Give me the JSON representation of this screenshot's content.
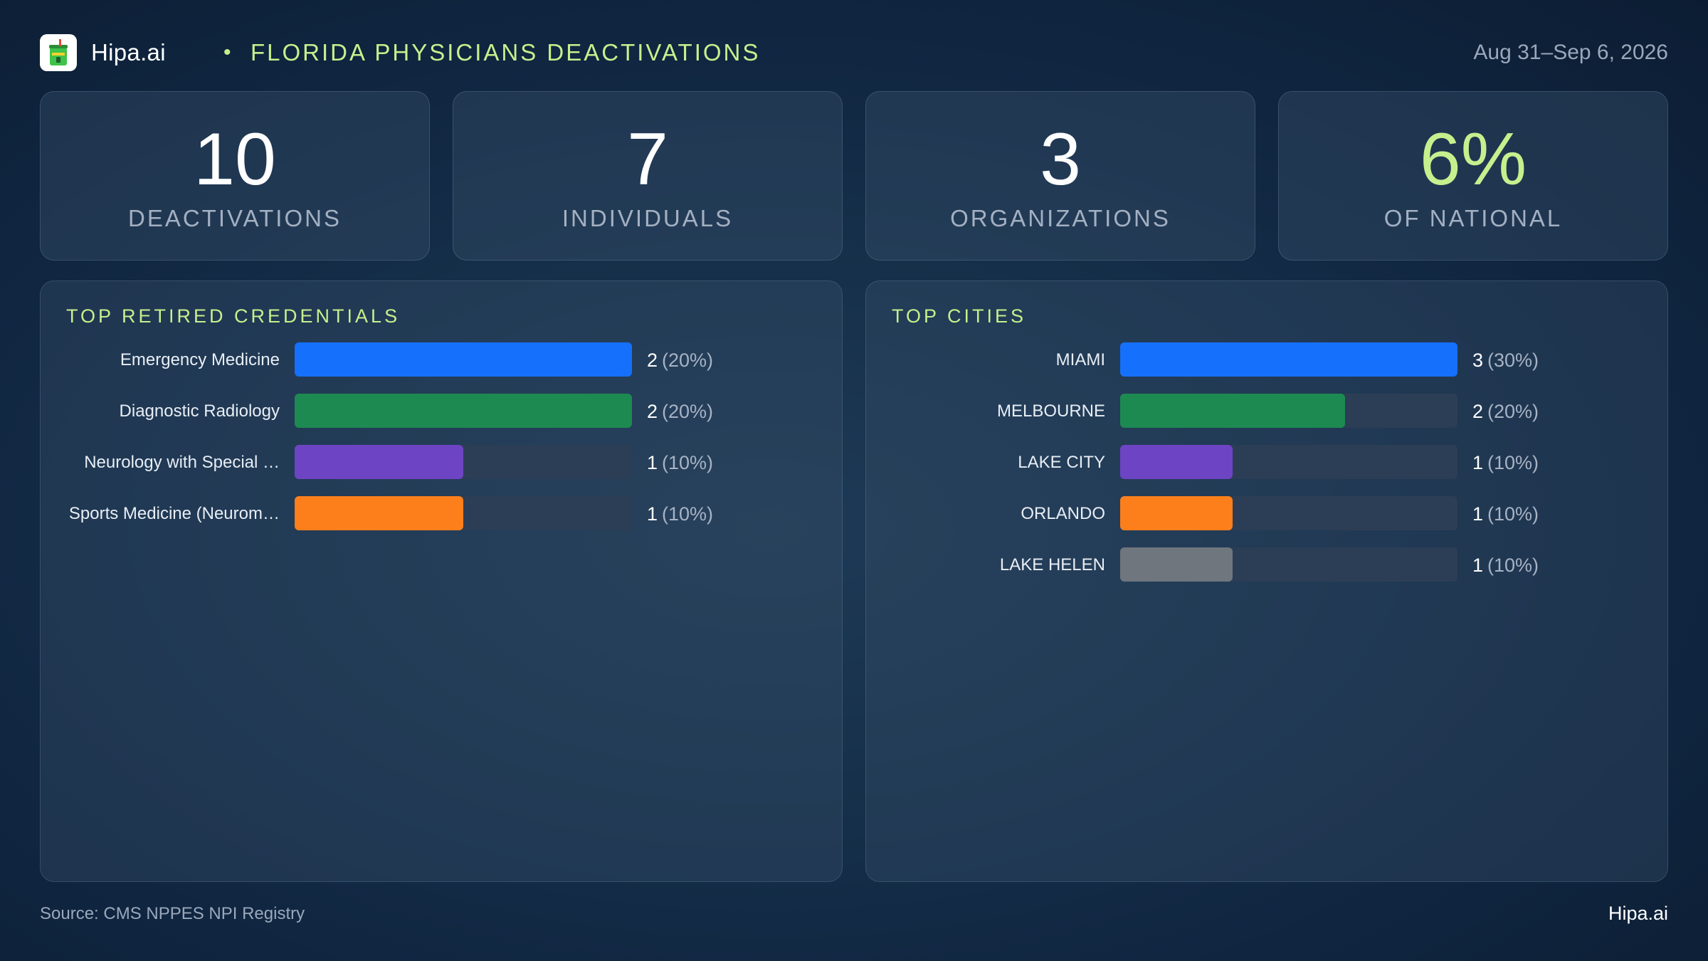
{
  "header": {
    "brand": "Hipa.ai",
    "separator": "•",
    "title": "FLORIDA PHYSICIANS DEACTIVATIONS",
    "date_range": "Aug 31–Sep 6, 2026",
    "logo_icon": "cup-icon"
  },
  "kpis": [
    {
      "value": "10",
      "label": "DEACTIVATIONS",
      "accent": false
    },
    {
      "value": "7",
      "label": "INDIVIDUALS",
      "accent": false
    },
    {
      "value": "3",
      "label": "ORGANIZATIONS",
      "accent": false
    },
    {
      "value": "6%",
      "label": "OF NATIONAL",
      "accent": true
    }
  ],
  "colors": {
    "accent": "#c6f08d",
    "blue": "#1570fb",
    "green": "#1d8a52",
    "purple": "#6d45c4",
    "orange": "#fc7f1b",
    "gray": "#6f767e",
    "track": "#2c3e55"
  },
  "chart_data": [
    {
      "type": "bar",
      "orientation": "horizontal",
      "title": "TOP RETIRED CREDENTIALS",
      "categories": [
        "Emergency Medicine",
        "Diagnostic Radiology",
        "Neurology with Special …",
        "Sports Medicine (Neurom…"
      ],
      "values": [
        2,
        2,
        1,
        1
      ],
      "percent_labels": [
        "(20%)",
        "(20%)",
        "(10%)",
        "(10%)"
      ],
      "bar_colors": [
        "#1570fb",
        "#1d8a52",
        "#6d45c4",
        "#fc7f1b"
      ],
      "xlim": [
        0,
        2
      ],
      "grid": false
    },
    {
      "type": "bar",
      "orientation": "horizontal",
      "title": "TOP CITIES",
      "categories": [
        "MIAMI",
        "MELBOURNE",
        "LAKE CITY",
        "ORLANDO",
        "LAKE HELEN"
      ],
      "values": [
        3,
        2,
        1,
        1,
        1
      ],
      "percent_labels": [
        "(30%)",
        "(20%)",
        "(10%)",
        "(10%)",
        "(10%)"
      ],
      "bar_colors": [
        "#1570fb",
        "#1d8a52",
        "#6d45c4",
        "#fc7f1b",
        "#6f767e"
      ],
      "xlim": [
        0,
        3
      ],
      "grid": false
    }
  ],
  "footer": {
    "source": "Source: CMS NPPES NPI Registry",
    "brand": "Hipa.ai"
  }
}
